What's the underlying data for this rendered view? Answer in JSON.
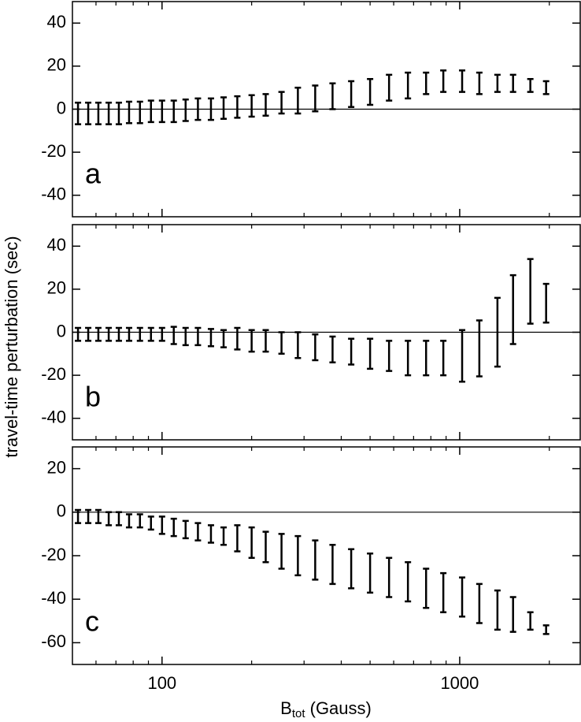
{
  "chart_data": [
    {
      "type": "errorbar",
      "panel_label": "a",
      "xscale": "log",
      "xlim": [
        50,
        2540
      ],
      "xticks": [
        100,
        1000
      ],
      "xminor": [
        60,
        70,
        80,
        90,
        200,
        300,
        400,
        500,
        600,
        700,
        800,
        900,
        2000
      ],
      "ylim": [
        -50,
        50
      ],
      "yticks": [
        -40,
        -20,
        0,
        20,
        40
      ],
      "hline": 0,
      "color": "#000000",
      "x": [
        52.2,
        56.5,
        61.1,
        66.2,
        71.6,
        77.5,
        84.3,
        91.8,
        100,
        109.5,
        120,
        132,
        146,
        161,
        179,
        200,
        223,
        252,
        286,
        327,
        374,
        432,
        500,
        579,
        670,
        771,
        881,
        1019,
        1164,
        1339,
        1511,
        1727,
        1951
      ],
      "values": [
        -2,
        -2,
        -2,
        -2,
        -2,
        -1.5,
        -1.5,
        -1,
        -1,
        -1,
        -0.5,
        0,
        0,
        0.5,
        1,
        1.5,
        2,
        3,
        4,
        5,
        6,
        7,
        8,
        10,
        11,
        12,
        13,
        13,
        12,
        12,
        12,
        11,
        10
      ],
      "errors": [
        5,
        5,
        5,
        5,
        5,
        5,
        5,
        5,
        5,
        5,
        5,
        5,
        5,
        5,
        5,
        5,
        5,
        5,
        6,
        6,
        6,
        6,
        6,
        6,
        6,
        5,
        5,
        5,
        5,
        4,
        4,
        3,
        3
      ]
    },
    {
      "type": "errorbar",
      "panel_label": "b",
      "xscale": "log",
      "ylabel": "travel-time perturbation (sec)",
      "xlim": [
        50,
        2540
      ],
      "xticks": [
        100,
        1000
      ],
      "xminor": [
        60,
        70,
        80,
        90,
        200,
        300,
        400,
        500,
        600,
        700,
        800,
        900,
        2000
      ],
      "ylim": [
        -50,
        50
      ],
      "yticks": [
        -40,
        -20,
        0,
        20,
        40
      ],
      "hline": 0,
      "color": "#000000",
      "x": [
        52.2,
        56.5,
        61.1,
        66.2,
        71.6,
        77.5,
        84.3,
        91.8,
        100,
        109.5,
        120,
        132,
        146,
        161,
        179,
        200,
        223,
        252,
        286,
        327,
        374,
        432,
        500,
        579,
        670,
        771,
        881,
        1019,
        1164,
        1339,
        1511,
        1727,
        1951
      ],
      "values": [
        -1,
        -1,
        -1,
        -1,
        -1,
        -1,
        -1,
        -1,
        -1,
        -1.5,
        -2,
        -2,
        -2.5,
        -3,
        -3,
        -4,
        -4,
        -5,
        -6,
        -7,
        -8,
        -9,
        -10,
        -11,
        -12,
        -12,
        -12,
        -11,
        -7.5,
        0,
        10.5,
        19,
        13.5
      ],
      "errors": [
        3,
        3,
        3,
        3,
        3,
        3,
        3,
        3,
        3,
        4,
        4,
        4,
        4,
        4,
        5,
        5,
        5,
        5,
        6,
        6,
        6,
        6,
        7,
        7,
        8,
        8,
        8,
        12,
        13,
        16,
        16,
        15,
        9
      ]
    },
    {
      "type": "errorbar",
      "panel_label": "c",
      "xscale": "log",
      "xlim": [
        50,
        2540
      ],
      "xticks": [
        100,
        1000
      ],
      "xminor": [
        60,
        70,
        80,
        90,
        200,
        300,
        400,
        500,
        600,
        700,
        800,
        900,
        2000
      ],
      "xlabel": [
        "B",
        "tot",
        " (Gauss)"
      ],
      "ylim": [
        -70,
        30
      ],
      "yticks": [
        -60,
        -40,
        -20,
        0,
        20
      ],
      "hline": 0,
      "color": "#000000",
      "x": [
        52.2,
        56.5,
        61.1,
        66.2,
        71.6,
        77.5,
        84.3,
        91.8,
        100,
        109.5,
        120,
        132,
        146,
        161,
        179,
        200,
        223,
        252,
        286,
        327,
        374,
        432,
        500,
        579,
        670,
        771,
        881,
        1019,
        1164,
        1339,
        1511,
        1727,
        1951
      ],
      "values": [
        -2,
        -2,
        -2,
        -3,
        -3,
        -4,
        -4,
        -5,
        -6,
        -7,
        -8,
        -9,
        -10,
        -11,
        -12,
        -14,
        -16,
        -18,
        -20,
        -22,
        -24,
        -26,
        -28,
        -30,
        -32,
        -35,
        -37,
        -39,
        -42,
        -45,
        -47,
        -50,
        -54
      ],
      "errors": [
        3,
        3,
        3,
        3,
        3,
        3,
        3,
        3,
        4,
        4,
        4,
        4,
        4,
        4,
        6,
        7,
        7,
        8,
        9,
        9,
        9,
        9,
        9,
        9,
        9,
        9,
        9,
        9,
        9,
        9,
        8,
        4,
        2
      ]
    }
  ]
}
